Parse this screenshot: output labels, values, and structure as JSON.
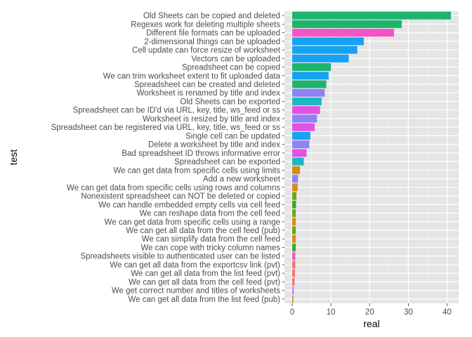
{
  "chart_data": {
    "type": "bar",
    "orientation": "horizontal",
    "xlabel": "real",
    "ylabel": "test",
    "xlim": [
      -2,
      43
    ],
    "xticks": [
      0,
      10,
      20,
      30,
      40
    ],
    "grid": true,
    "legend": "none",
    "categories": [
      "Old Sheets can be copied and deleted",
      "Regexes work for deleting multiple sheets",
      "Different file formats can be uploaded",
      "2-dimensional things can be uploaded",
      "Cell update can force resize of worksheet",
      "Vectors can be uploaded",
      "Spreadsheet can be copied",
      "We can trim worksheet extent to fit uploaded data",
      "Spreadsheet can be created and deleted",
      "Worksheet is renamed by title and index",
      "Old Sheets can be exported",
      "Spreadsheet can be ID'd via URL, key, title, ws_feed or ss",
      "Worksheet is resized by title and index",
      "Spreadsheet can be registered via URL, key, title, ws_feed or ss",
      "Single cell can be updated",
      "Delete a worksheet by title and index",
      "Bad spreadsheet ID throws informative error",
      "Spreadsheet can be exported",
      "We can get data from specific cells using limits",
      "Add a new worksheet",
      "We can get data from specific cells using rows and columns",
      "Nonexistent spreadsheet can NOT be deleted or copied",
      "We can handle embedded empty cells via cell feed",
      "We can reshape data from the cell feed",
      "We can get data from specific cells using a range",
      "We can get all data from the cell feed (pub)",
      "We can simplify data from the cell feed",
      "We can cope with tricky column names",
      "Spreadsheets visible to authenticated user can be listed",
      "We can get all data from the exportcsv link (pvt)",
      "We can get all data from the list feed (pvt)",
      "We can get all data from the cell feed (pvt)",
      "We get correct number and titles of worksheets",
      "We can get all data from the list feed (pub)"
    ],
    "values": [
      41,
      28.3,
      26.3,
      18.5,
      16.8,
      14.6,
      10,
      9.4,
      8.8,
      8.4,
      7.6,
      7.2,
      6.4,
      5.8,
      4.7,
      4.4,
      3.7,
      3,
      2,
      1.5,
      1.4,
      1.1,
      1.0,
      0.9,
      0.9,
      0.9,
      0.9,
      0.9,
      0.8,
      0.8,
      0.7,
      0.6,
      0.4,
      0.3
    ],
    "colors": [
      "#1DB46E",
      "#1DB46E",
      "#F653C7",
      "#15A2F2",
      "#15A2F2",
      "#15A2F2",
      "#1DB46E",
      "#15A2F2",
      "#1DB46E",
      "#8D82F6",
      "#1BB8BF",
      "#E450E6",
      "#8D82F6",
      "#E450E6",
      "#15A2F2",
      "#8D82F6",
      "#E450E6",
      "#1BB8BF",
      "#D98B12",
      "#8D82F6",
      "#D98B12",
      "#6FA612",
      "#3FA81F",
      "#6FA612",
      "#D98B12",
      "#6FA612",
      "#D98B12",
      "#3FA81F",
      "#F653C7",
      "#F5746B",
      "#F5746B",
      "#F5746B",
      "#C873F8",
      "#A5A01A"
    ]
  }
}
